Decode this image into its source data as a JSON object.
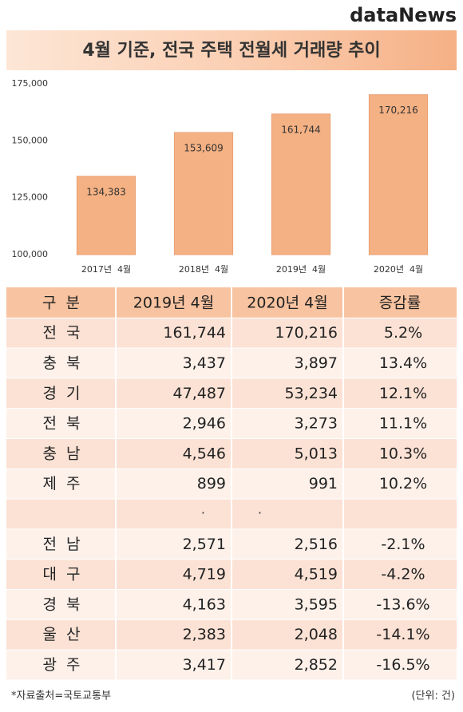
{
  "logo": "dataNews",
  "chart_data": {
    "type": "bar",
    "title": "4월 기준, 전국 주택 전월세 거래량 추이",
    "categories": [
      "2017년  4월",
      "2018년  4월",
      "2019년  4월",
      "2020년  4월"
    ],
    "values": [
      134383,
      153609,
      161744,
      170216
    ],
    "value_labels": [
      "134,383",
      "153,609",
      "161,744",
      "170,216"
    ],
    "color": "#f4b183",
    "ylim": [
      100000,
      175000
    ],
    "yticks": [
      {
        "value": 100000,
        "label": "100,000"
      },
      {
        "value": 125000,
        "label": "125,000"
      },
      {
        "value": 150000,
        "label": "150,000"
      },
      {
        "value": 175000,
        "label": "175,000"
      }
    ],
    "grid": false
  },
  "table": {
    "header": [
      "구  분",
      "2019년 4월",
      "2020년 4월",
      "증감률"
    ],
    "rows": [
      [
        "전  국",
        "161,744",
        "170,216",
        "5.2%"
      ],
      [
        "충  북",
        "3,437",
        "3,897",
        "13.4%"
      ],
      [
        "경  기",
        "47,487",
        "53,234",
        "12.1%"
      ],
      [
        "전  북",
        "2,946",
        "3,273",
        "11.1%"
      ],
      [
        "충  남",
        "4,546",
        "5,013",
        "10.3%"
      ],
      [
        "제  주",
        "899",
        "991",
        "10.2%"
      ],
      [
        "·      ·      ·"
      ],
      [
        "전  남",
        "2,571",
        "2,516",
        "-2.1%"
      ],
      [
        "대  구",
        "4,719",
        "4,519",
        "-4.2%"
      ],
      [
        "경  북",
        "4,163",
        "3,595",
        "-13.6%"
      ],
      [
        "울  산",
        "2,383",
        "2,048",
        "-14.1%"
      ],
      [
        "광  주",
        "3,417",
        "2,852",
        "-16.5%"
      ]
    ]
  },
  "footer": {
    "source": "*자료출처=국토교통부",
    "unit": "(단위: 건)"
  }
}
